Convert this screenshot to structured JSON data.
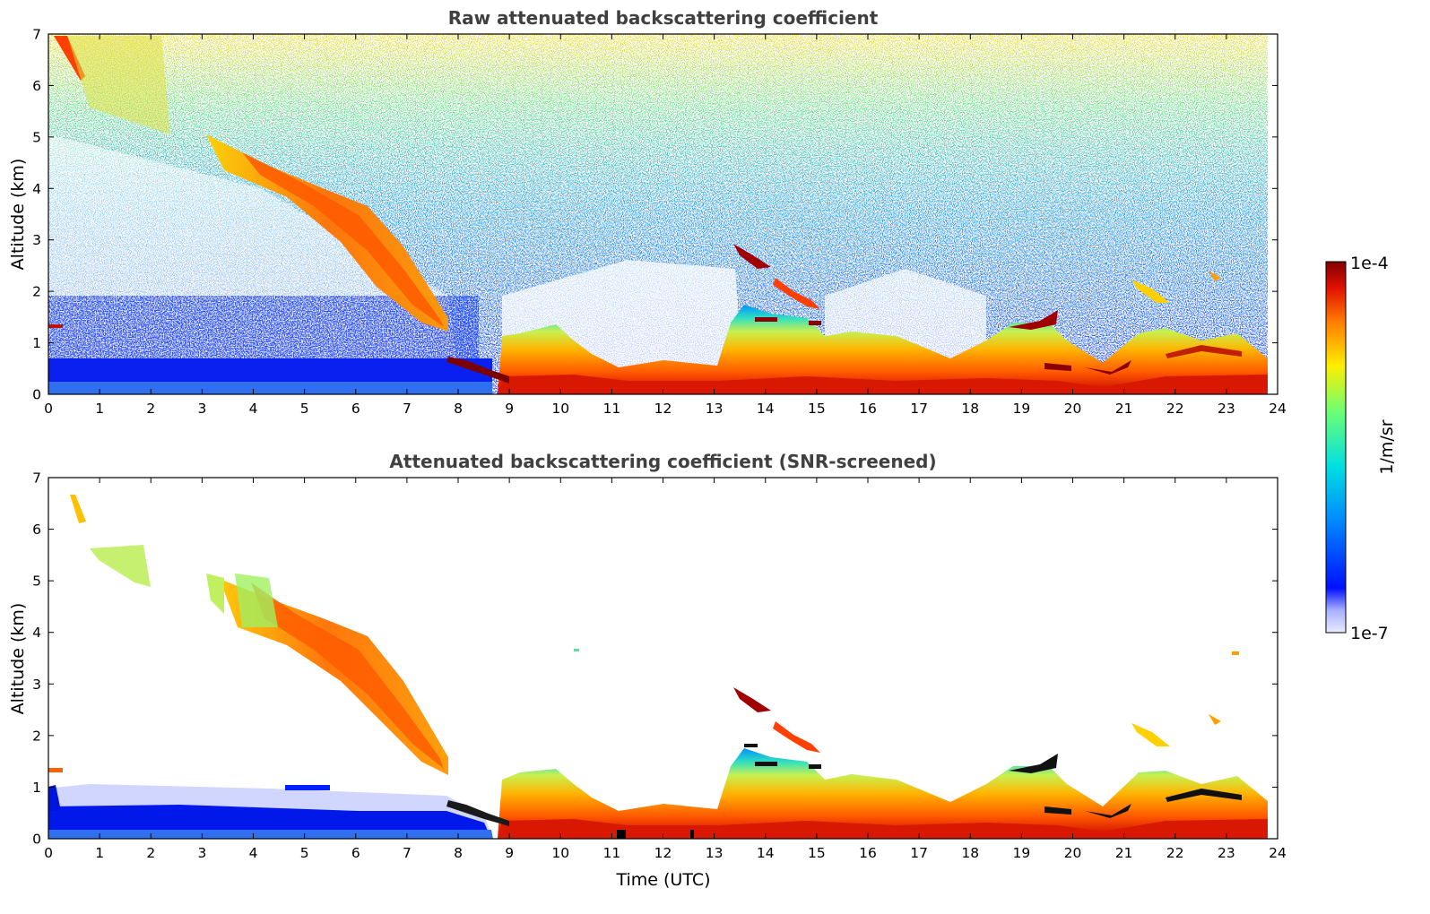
{
  "chart_data": [
    {
      "type": "heatmap",
      "title": "Raw attenuated backscattering coefficient",
      "xlabel": "",
      "ylabel": "Altitude (km)",
      "xlim": [
        0,
        24
      ],
      "ylim": [
        0,
        7
      ],
      "xticks": [
        0,
        1,
        2,
        3,
        4,
        5,
        6,
        7,
        8,
        9,
        10,
        11,
        12,
        13,
        14,
        15,
        16,
        17,
        18,
        19,
        20,
        21,
        22,
        23,
        24
      ],
      "yticks": [
        0,
        1,
        2,
        3,
        4,
        5,
        6,
        7
      ],
      "grid": false
    },
    {
      "type": "heatmap",
      "title": "Attenuated backscattering coefficient (SNR-screened)",
      "xlabel": "Time (UTC)",
      "ylabel": "Altitude (km)",
      "xlim": [
        0,
        24
      ],
      "ylim": [
        0,
        7
      ],
      "xticks": [
        0,
        1,
        2,
        3,
        4,
        5,
        6,
        7,
        8,
        9,
        10,
        11,
        12,
        13,
        14,
        15,
        16,
        17,
        18,
        19,
        20,
        21,
        22,
        23,
        24
      ],
      "yticks": [
        0,
        1,
        2,
        3,
        4,
        5,
        6,
        7
      ],
      "grid": false
    }
  ],
  "colorbar": {
    "label": "1/m/sr",
    "max_label": "1e-4",
    "min_label": "1e-7",
    "scale": "log",
    "colormap": "jet",
    "range": [
      1e-07,
      0.0001
    ]
  },
  "colors": {
    "title": "#404040",
    "noise": "#1a3cff",
    "boundary_layer": "#ff7a00",
    "cloud": "#b80000"
  }
}
